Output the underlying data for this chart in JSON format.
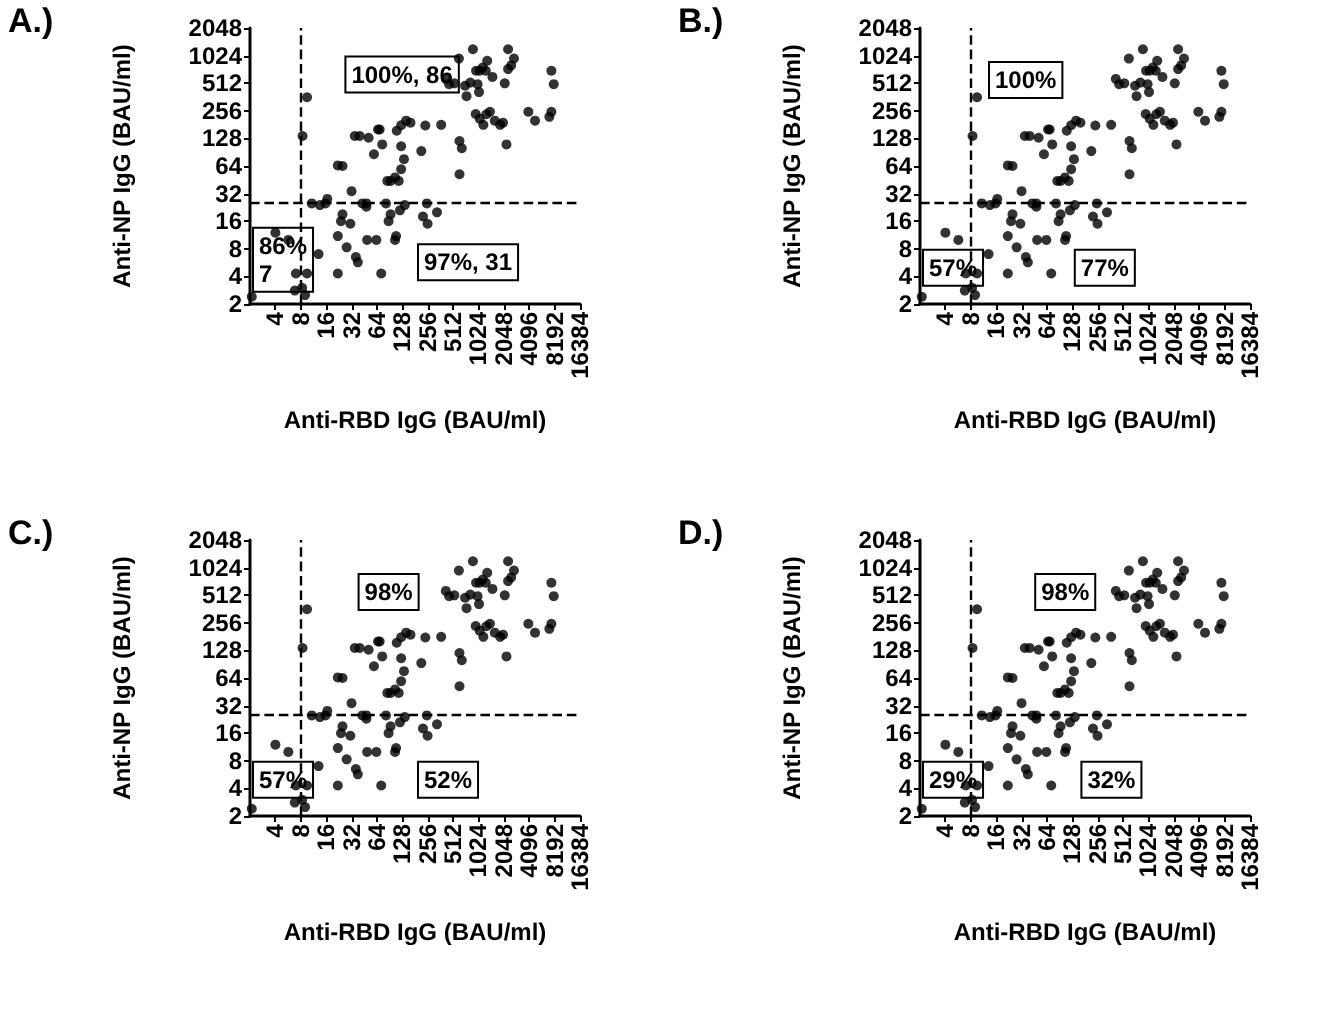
{
  "chart_data": [
    {
      "type": "scatter",
      "title": "A.)",
      "xlabel": "Anti-RBD IgG (BAU/ml)",
      "ylabel": "Anti-NP IgG (BAU/ml)",
      "color": "#000000",
      "marker": "circle",
      "grid": false,
      "log": "xy",
      "x": [
        2.1,
        4,
        5.7,
        6.8,
        7,
        9.5,
        8.4,
        9.5,
        8.3,
        9,
        10.8,
        13,
        13.5,
        16.5,
        15.7,
        22,
        22,
        24,
        25,
        22,
        25,
        28,
        32,
        35,
        40,
        31,
        36,
        38,
        43,
        48,
        48,
        49,
        51,
        59,
        63,
        66,
        69,
        74,
        82,
        93,
        88,
        72,
        105,
        85,
        93,
        105,
        116,
        124,
        124,
        110,
        124,
        142,
        160,
        134,
        137,
        120,
        108,
        215,
        240,
        250,
        225,
        255,
        330,
        370,
        420,
        460,
        530,
        600,
        610,
        610,
        650,
        710,
        740,
        820,
        880,
        960,
        1060,
        1150,
        1000,
        1040,
        950,
        1060,
        1170,
        1270,
        1400,
        1600,
        1250,
        1300,
        1500,
        2100,
        2300,
        2500,
        2300,
        2700,
        2000,
        2200,
        1850,
        4000,
        4800,
        7500,
        7500,
        7100,
        8000
      ],
      "values": [
        2.4,
        12,
        10,
        2.8,
        4.3,
        360,
        136,
        4.3,
        3,
        2.5,
        25,
        7,
        24,
        28,
        25,
        4.3,
        11,
        16,
        19,
        65,
        64,
        8.3,
        34,
        136,
        136,
        15,
        6.5,
        5.7,
        25,
        25,
        23,
        10,
        130,
        86,
        10,
        160,
        160,
        110,
        25,
        19,
        16,
        4.3,
        10,
        44,
        44,
        48,
        44,
        59,
        105,
        155,
        178,
        200,
        190,
        76,
        24,
        21,
        11,
        93,
        177,
        25,
        18,
        15,
        20,
        180,
        570,
        500,
        510,
        950,
        52,
        120,
        100,
        480,
        370,
        520,
        1200,
        700,
        700,
        760,
        500,
        410,
        236,
        210,
        180,
        235,
        250,
        200,
        700,
        900,
        600,
        510,
        730,
        800,
        1200,
        950,
        190,
        110,
        180,
        250,
        200,
        700,
        250,
        220,
        500
      ],
      "xlim": [
        2,
        16384
      ],
      "xticks": [
        4,
        8,
        16,
        32,
        64,
        128,
        256,
        512,
        1024,
        2048,
        4096,
        8192,
        16384
      ],
      "ylim": [
        2,
        2048
      ],
      "yticks": [
        2,
        4,
        8,
        16,
        32,
        64,
        128,
        256,
        512,
        1024,
        2048
      ],
      "ref_lines": [
        {
          "axis": "x",
          "value": 8,
          "line_style": "dashed"
        },
        {
          "axis": "y",
          "value": 26,
          "line_style": "dashed"
        }
      ],
      "annotations": [
        "100%, 86",
        "97%, 31",
        "86%\n7"
      ]
    },
    {
      "type": "scatter",
      "title": "B.)",
      "xlabel": "Anti-RBD IgG (BAU/ml)",
      "ylabel": "Anti-NP IgG (BAU/ml)",
      "color": "#000000",
      "marker": "circle",
      "grid": false,
      "log": "xy",
      "x": [
        2.1,
        4,
        5.7,
        6.8,
        7,
        9.5,
        8.4,
        9.5,
        8.3,
        9,
        10.8,
        13,
        13.5,
        16.5,
        15.7,
        22,
        22,
        24,
        25,
        22,
        25,
        28,
        32,
        35,
        40,
        31,
        36,
        38,
        43,
        48,
        48,
        49,
        51,
        59,
        63,
        66,
        69,
        74,
        82,
        93,
        88,
        72,
        105,
        85,
        93,
        105,
        116,
        124,
        124,
        110,
        124,
        142,
        160,
        134,
        137,
        120,
        108,
        215,
        240,
        250,
        225,
        255,
        330,
        370,
        420,
        460,
        530,
        600,
        610,
        610,
        650,
        710,
        740,
        820,
        880,
        960,
        1060,
        1150,
        1000,
        1040,
        950,
        1060,
        1170,
        1270,
        1400,
        1600,
        1250,
        1300,
        1500,
        2100,
        2300,
        2500,
        2300,
        2700,
        2000,
        2200,
        1850,
        4000,
        4800,
        7500,
        7500,
        7100,
        8000
      ],
      "values": [
        2.4,
        12,
        10,
        2.8,
        4.3,
        360,
        136,
        4.3,
        3,
        2.5,
        25,
        7,
        24,
        28,
        25,
        4.3,
        11,
        16,
        19,
        65,
        64,
        8.3,
        34,
        136,
        136,
        15,
        6.5,
        5.7,
        25,
        25,
        23,
        10,
        130,
        86,
        10,
        160,
        160,
        110,
        25,
        19,
        16,
        4.3,
        10,
        44,
        44,
        48,
        44,
        59,
        105,
        155,
        178,
        200,
        190,
        76,
        24,
        21,
        11,
        93,
        177,
        25,
        18,
        15,
        20,
        180,
        570,
        500,
        510,
        950,
        52,
        120,
        100,
        480,
        370,
        520,
        1200,
        700,
        700,
        760,
        500,
        410,
        236,
        210,
        180,
        235,
        250,
        200,
        700,
        900,
        600,
        510,
        730,
        800,
        1200,
        950,
        190,
        110,
        180,
        250,
        200,
        700,
        250,
        220,
        500
      ],
      "xlim": [
        2,
        16384
      ],
      "xticks": [
        4,
        8,
        16,
        32,
        64,
        128,
        256,
        512,
        1024,
        2048,
        4096,
        8192,
        16384
      ],
      "ylim": [
        2,
        2048
      ],
      "yticks": [
        2,
        4,
        8,
        16,
        32,
        64,
        128,
        256,
        512,
        1024,
        2048
      ],
      "ref_lines": [
        {
          "axis": "x",
          "value": 8,
          "line_style": "dashed"
        },
        {
          "axis": "y",
          "value": 26,
          "line_style": "dashed"
        }
      ],
      "annotations": [
        "100%",
        "77%",
        "57%"
      ]
    },
    {
      "type": "scatter",
      "title": "C.)",
      "xlabel": "Anti-RBD IgG (BAU/ml)",
      "ylabel": "Anti-NP IgG (BAU/ml)",
      "color": "#000000",
      "marker": "circle",
      "grid": false,
      "log": "xy",
      "x": [
        2.1,
        4,
        5.7,
        6.8,
        7,
        9.5,
        8.4,
        9.5,
        8.3,
        9,
        10.8,
        13,
        13.5,
        16.5,
        15.7,
        22,
        22,
        24,
        25,
        22,
        25,
        28,
        32,
        35,
        40,
        31,
        36,
        38,
        43,
        48,
        48,
        49,
        51,
        59,
        63,
        66,
        69,
        74,
        82,
        93,
        88,
        72,
        105,
        85,
        93,
        105,
        116,
        124,
        124,
        110,
        124,
        142,
        160,
        134,
        137,
        120,
        108,
        215,
        240,
        250,
        225,
        255,
        330,
        370,
        420,
        460,
        530,
        600,
        610,
        610,
        650,
        710,
        740,
        820,
        880,
        960,
        1060,
        1150,
        1000,
        1040,
        950,
        1060,
        1170,
        1270,
        1400,
        1600,
        1250,
        1300,
        1500,
        2100,
        2300,
        2500,
        2300,
        2700,
        2000,
        2200,
        1850,
        4000,
        4800,
        7500,
        7500,
        7100,
        8000
      ],
      "values": [
        2.4,
        12,
        10,
        2.8,
        4.3,
        360,
        136,
        4.3,
        3,
        2.5,
        25,
        7,
        24,
        28,
        25,
        4.3,
        11,
        16,
        19,
        65,
        64,
        8.3,
        34,
        136,
        136,
        15,
        6.5,
        5.7,
        25,
        25,
        23,
        10,
        130,
        86,
        10,
        160,
        160,
        110,
        25,
        19,
        16,
        4.3,
        10,
        44,
        44,
        48,
        44,
        59,
        105,
        155,
        178,
        200,
        190,
        76,
        24,
        21,
        11,
        93,
        177,
        25,
        18,
        15,
        20,
        180,
        570,
        500,
        510,
        950,
        52,
        120,
        100,
        480,
        370,
        520,
        1200,
        700,
        700,
        760,
        500,
        410,
        236,
        210,
        180,
        235,
        250,
        200,
        700,
        900,
        600,
        510,
        730,
        800,
        1200,
        950,
        190,
        110,
        180,
        250,
        200,
        700,
        250,
        220,
        500
      ],
      "xlim": [
        2,
        16384
      ],
      "xticks": [
        4,
        8,
        16,
        32,
        64,
        128,
        256,
        512,
        1024,
        2048,
        4096,
        8192,
        16384
      ],
      "ylim": [
        2,
        2048
      ],
      "yticks": [
        2,
        4,
        8,
        16,
        32,
        64,
        128,
        256,
        512,
        1024,
        2048
      ],
      "ref_lines": [
        {
          "axis": "x",
          "value": 8,
          "line_style": "dashed"
        },
        {
          "axis": "y",
          "value": 26,
          "line_style": "dashed"
        }
      ],
      "annotations": [
        "98%",
        "52%",
        "57%"
      ]
    },
    {
      "type": "scatter",
      "title": "D.)",
      "xlabel": "Anti-RBD IgG (BAU/ml)",
      "ylabel": "Anti-NP IgG (BAU/ml)",
      "color": "#000000",
      "marker": "circle",
      "grid": false,
      "log": "xy",
      "x": [
        2.1,
        4,
        5.7,
        6.8,
        7,
        9.5,
        8.4,
        9.5,
        8.3,
        9,
        10.8,
        13,
        13.5,
        16.5,
        15.7,
        22,
        22,
        24,
        25,
        22,
        25,
        28,
        32,
        35,
        40,
        31,
        36,
        38,
        43,
        48,
        48,
        49,
        51,
        59,
        63,
        66,
        69,
        74,
        82,
        93,
        88,
        72,
        105,
        85,
        93,
        105,
        116,
        124,
        124,
        110,
        124,
        142,
        160,
        134,
        137,
        120,
        108,
        215,
        240,
        250,
        225,
        255,
        330,
        370,
        420,
        460,
        530,
        600,
        610,
        610,
        650,
        710,
        740,
        820,
        880,
        960,
        1060,
        1150,
        1000,
        1040,
        950,
        1060,
        1170,
        1270,
        1400,
        1600,
        1250,
        1300,
        1500,
        2100,
        2300,
        2500,
        2300,
        2700,
        2000,
        2200,
        1850,
        4000,
        4800,
        7500,
        7500,
        7100,
        8000
      ],
      "values": [
        2.4,
        12,
        10,
        2.8,
        4.3,
        360,
        136,
        4.3,
        3,
        2.5,
        25,
        7,
        24,
        28,
        25,
        4.3,
        11,
        16,
        19,
        65,
        64,
        8.3,
        34,
        136,
        136,
        15,
        6.5,
        5.7,
        25,
        25,
        23,
        10,
        130,
        86,
        10,
        160,
        160,
        110,
        25,
        19,
        16,
        4.3,
        10,
        44,
        44,
        48,
        44,
        59,
        105,
        155,
        178,
        200,
        190,
        76,
        24,
        21,
        11,
        93,
        177,
        25,
        18,
        15,
        20,
        180,
        570,
        500,
        510,
        950,
        52,
        120,
        100,
        480,
        370,
        520,
        1200,
        700,
        700,
        760,
        500,
        410,
        236,
        210,
        180,
        235,
        250,
        200,
        700,
        900,
        600,
        510,
        730,
        800,
        1200,
        950,
        190,
        110,
        180,
        250,
        200,
        700,
        250,
        220,
        500
      ],
      "xlim": [
        2,
        16384
      ],
      "xticks": [
        4,
        8,
        16,
        32,
        64,
        128,
        256,
        512,
        1024,
        2048,
        4096,
        8192,
        16384
      ],
      "ylim": [
        2,
        2048
      ],
      "yticks": [
        2,
        4,
        8,
        16,
        32,
        64,
        128,
        256,
        512,
        1024,
        2048
      ],
      "ref_lines": [
        {
          "axis": "x",
          "value": 8,
          "line_style": "dashed"
        },
        {
          "axis": "y",
          "value": 26,
          "line_style": "dashed"
        }
      ],
      "annotations": [
        "98%",
        "32%",
        "29%"
      ]
    }
  ]
}
